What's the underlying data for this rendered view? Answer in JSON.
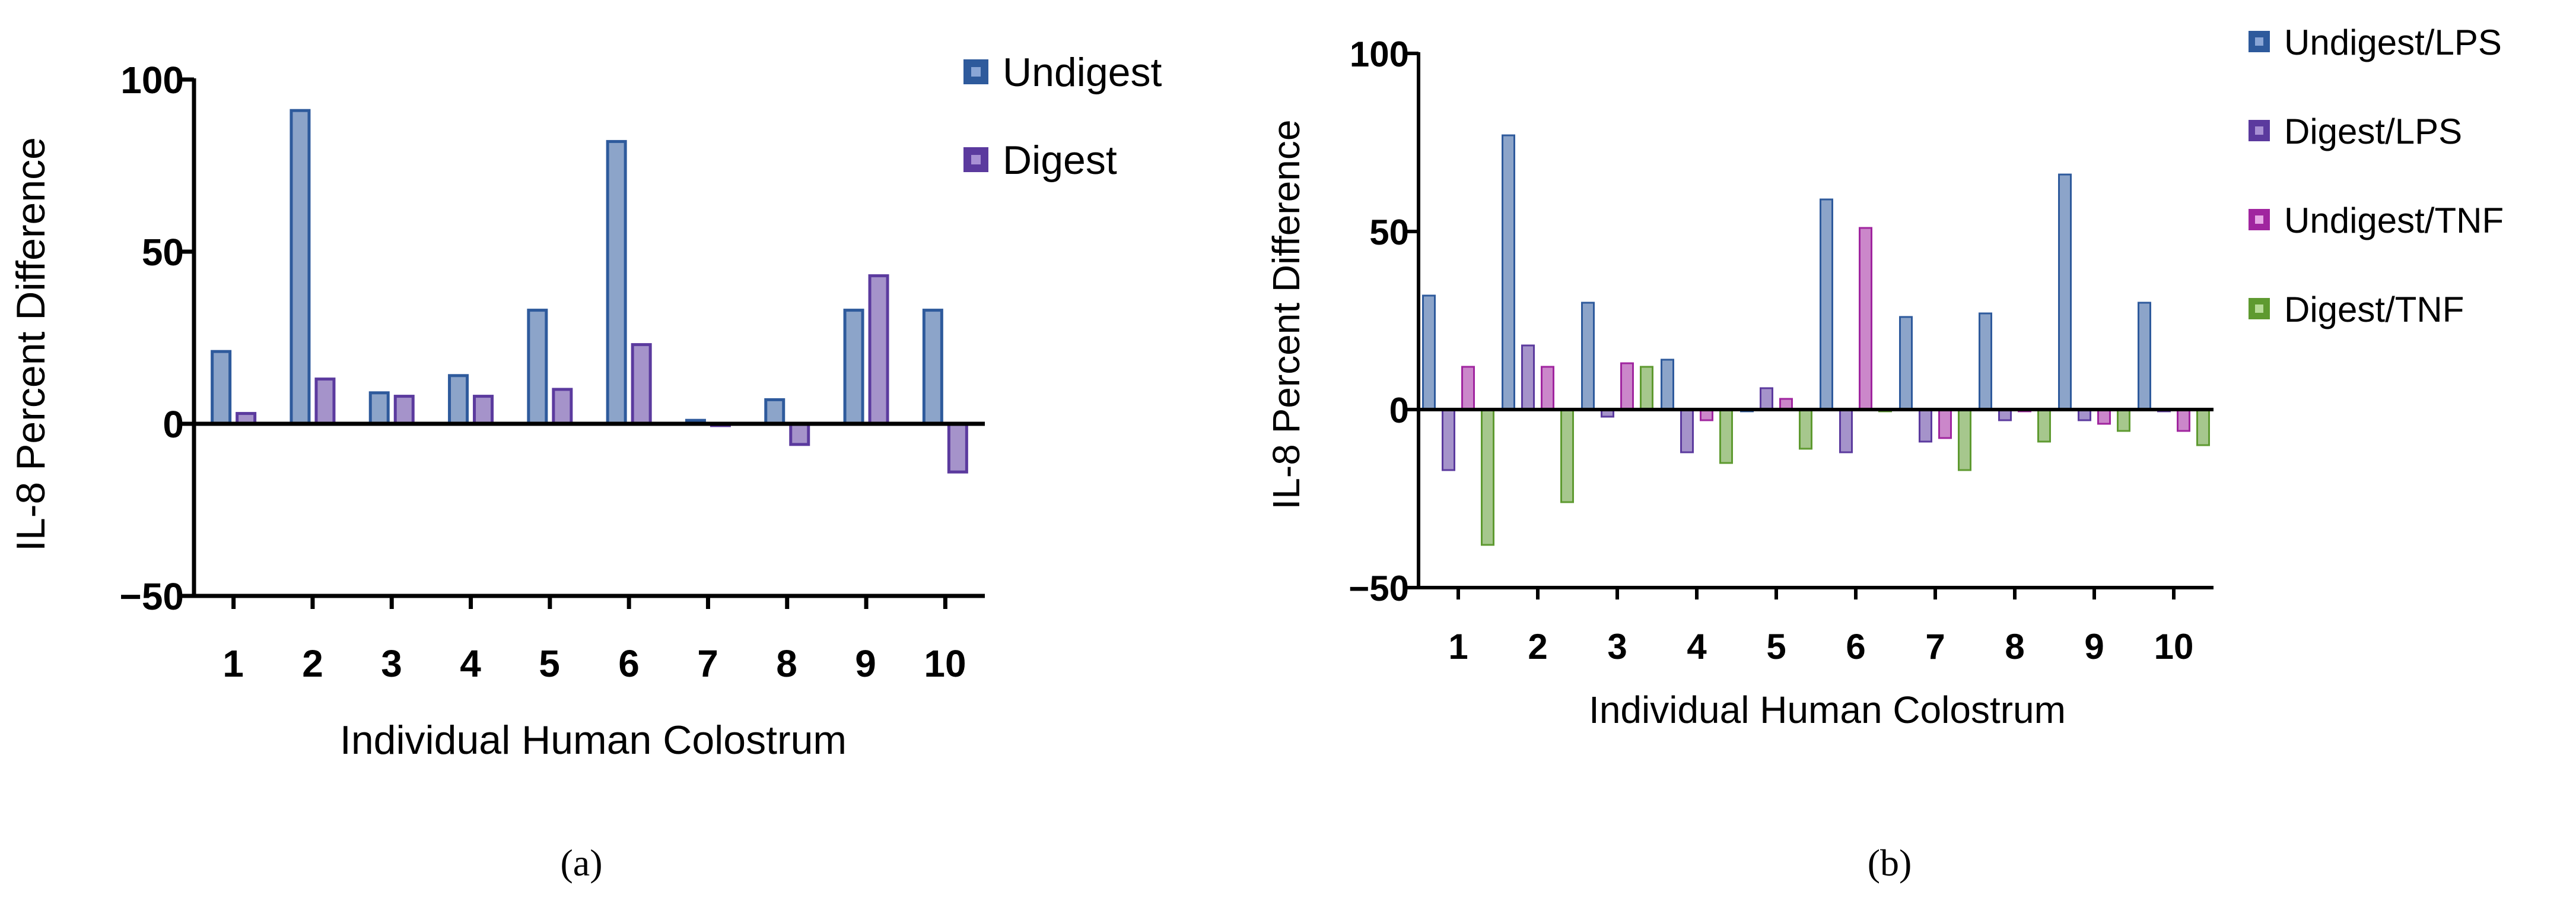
{
  "colors": {
    "blue": "#2E5A9C",
    "purple": "#5B3A9E",
    "magenta": "#A0259F",
    "green": "#5E9A30",
    "axis": "#000000"
  },
  "chart_data": [
    {
      "type": "bar",
      "panel_label": "(a)",
      "title": "",
      "xlabel": "Individual Human Colostrum",
      "ylabel": "IL-8 Percent Difference",
      "ylim": [
        -50,
        100
      ],
      "yticks": [
        -50,
        0,
        50,
        100
      ],
      "ytick_labels": [
        "−50",
        "0",
        "50",
        "100"
      ],
      "grid": false,
      "legend_position": "top-right",
      "categories": [
        "1",
        "2",
        "3",
        "4",
        "5",
        "6",
        "7",
        "8",
        "9",
        "10"
      ],
      "series": [
        {
          "name": "Undigest",
          "color": "#2E5A9C",
          "values": [
            21,
            91,
            9,
            14,
            33,
            82,
            1,
            7,
            33,
            33
          ]
        },
        {
          "name": "Digest",
          "color": "#5B3A9E",
          "values": [
            3,
            13,
            8,
            8,
            10,
            23,
            0,
            -6,
            43,
            -14
          ]
        }
      ]
    },
    {
      "type": "bar",
      "panel_label": "(b)",
      "title": "",
      "xlabel": "Individual Human Colostrum",
      "ylabel": "IL-8 Percent Difference",
      "ylim": [
        -50,
        100
      ],
      "yticks": [
        -50,
        0,
        50,
        100
      ],
      "ytick_labels": [
        "−50",
        "0",
        "50",
        "100"
      ],
      "grid": false,
      "legend_position": "top-right",
      "categories": [
        "1",
        "2",
        "3",
        "4",
        "5",
        "6",
        "7",
        "8",
        "9",
        "10"
      ],
      "series": [
        {
          "name": "Undigest/LPS",
          "color": "#2E5A9C",
          "values": [
            32,
            77,
            30,
            14,
            0,
            59,
            26,
            27,
            66,
            30
          ]
        },
        {
          "name": "Digest/LPS",
          "color": "#5B3A9E",
          "values": [
            -17,
            18,
            -2,
            -12,
            6,
            -12,
            -9,
            -3,
            -3,
            0
          ]
        },
        {
          "name": "Undigest/TNF",
          "color": "#A0259F",
          "values": [
            12,
            12,
            13,
            -3,
            3,
            51,
            -8,
            0,
            -4,
            -6
          ]
        },
        {
          "name": "Digest/TNF",
          "color": "#5E9A30",
          "values": [
            -38,
            -26,
            12,
            -15,
            -11,
            0,
            -17,
            -9,
            -6,
            -10
          ]
        }
      ]
    }
  ]
}
